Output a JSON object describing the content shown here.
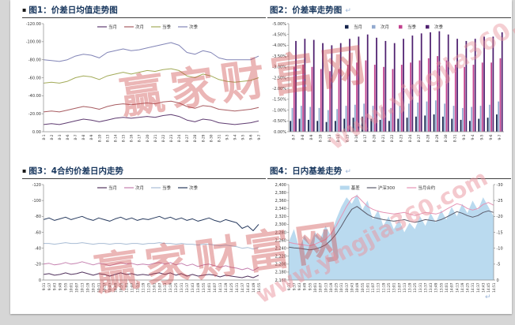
{
  "page": {
    "watermark": {
      "line1": "赢家财富网",
      "line2": "www.yingjia360.com",
      "color": "#ce4848"
    },
    "end_pilcrow": "↵"
  },
  "panels": [
    {
      "bullet": "▪",
      "title": "图1：价差日均值走势图",
      "pilcrow": ""
    },
    {
      "bullet": "",
      "title": "图2：价差率走势图",
      "pilcrow": "↵"
    },
    {
      "bullet": "▪",
      "title": "图3：4合约价差日内走势",
      "pilcrow": ""
    },
    {
      "bullet": "",
      "title": "图4：日内基差走势",
      "pilcrow": "↵"
    }
  ],
  "chart_data": [
    {
      "type": "line",
      "title": "价差日均值走势图",
      "legend_position": "top",
      "grid": false,
      "y_left": {
        "bottom": 0,
        "top": -120,
        "tick_count": 7,
        "format": "fixed2"
      },
      "x": [
        "8-1",
        "8-2",
        "8-3",
        "8-6",
        "8-7",
        "8-8",
        "8-9",
        "8-10",
        "8-13",
        "8-14",
        "8-15",
        "8-16",
        "8-17",
        "8-20",
        "8-21",
        "8-22",
        "8-23",
        "8-24",
        "8-27",
        "8-28",
        "8-29",
        "8-30",
        "8-31",
        "9-3",
        "9-4",
        "9-5",
        "9-6",
        "9-7"
      ],
      "series": [
        {
          "name": "当月",
          "color": "#5f3c71",
          "values": [
            -8,
            -9,
            -8,
            -10,
            -12,
            -14,
            -13,
            -11,
            -13,
            -15,
            -16,
            -15,
            -16,
            -17,
            -16,
            -18,
            -19,
            -17,
            -13,
            -11,
            -14,
            -13,
            -10,
            -9,
            -8,
            -9,
            -10,
            -12
          ]
        },
        {
          "name": "次月",
          "color": "#a85d62",
          "values": [
            -22,
            -23,
            -22,
            -24,
            -26,
            -28,
            -27,
            -25,
            -28,
            -30,
            -31,
            -30,
            -31,
            -32,
            -31,
            -33,
            -34,
            -32,
            -28,
            -26,
            -29,
            -28,
            -25,
            -24,
            -23,
            -24,
            -25,
            -27
          ]
        },
        {
          "name": "当季",
          "color": "#a3ab59",
          "values": [
            -54,
            -55,
            -54,
            -56,
            -60,
            -62,
            -61,
            -58,
            -62,
            -64,
            -66,
            -64,
            -66,
            -68,
            -67,
            -69,
            -70,
            -68,
            -62,
            -60,
            -64,
            -62,
            -58,
            -56,
            -55,
            -56,
            -57,
            -60
          ]
        },
        {
          "name": "次季",
          "color": "#8184b6",
          "values": [
            -80,
            -79,
            -78,
            -80,
            -84,
            -86,
            -85,
            -82,
            -88,
            -90,
            -92,
            -90,
            -91,
            -93,
            -95,
            -97,
            -99,
            -96,
            -88,
            -86,
            -90,
            -88,
            -82,
            -80,
            -80,
            -80,
            -80,
            -84
          ]
        }
      ]
    },
    {
      "type": "bar",
      "title": "价差率走势图",
      "legend_position": "top",
      "grid": false,
      "y_left": {
        "bottom": 0,
        "top": -5,
        "tick_count": 11,
        "format": "pct2"
      },
      "x": [
        "8-7",
        "8-8",
        "8-9",
        "8-10",
        "8-13",
        "8-14",
        "8-15",
        "8-16",
        "8-17",
        "8-20",
        "8-21",
        "8-22",
        "8-23",
        "8-24",
        "8-27",
        "8-28",
        "8-29",
        "8-30",
        "8-31",
        "9-3",
        "9-4",
        "9-5",
        "9-6",
        "9-7"
      ],
      "series": [
        {
          "name": "当月",
          "color": "#16254c",
          "values": [
            -0.5,
            -0.6,
            -0.55,
            -0.5,
            -0.45,
            -0.5,
            -0.6,
            -0.65,
            -0.7,
            -0.6,
            -0.55,
            -0.5,
            -0.6,
            -0.65,
            -0.7,
            -0.75,
            -0.8,
            -0.7,
            -0.6,
            -0.55,
            -0.5,
            -0.6,
            -0.65,
            -0.8
          ]
        },
        {
          "name": "次月",
          "color": "#92a9cf",
          "values": [
            -1.1,
            -1.2,
            -1.15,
            -1.1,
            -1.0,
            -1.05,
            -1.2,
            -1.25,
            -1.3,
            -1.2,
            -1.15,
            -1.1,
            -1.2,
            -1.3,
            -1.35,
            -1.4,
            -1.45,
            -1.3,
            -1.2,
            -1.1,
            -1.15,
            -1.2,
            -1.25,
            -1.4
          ]
        },
        {
          "name": "当季",
          "color": "#c2428f",
          "values": [
            -3.0,
            -3.1,
            -3.0,
            -2.9,
            -2.8,
            -2.9,
            -3.1,
            -3.2,
            -3.3,
            -3.1,
            -3.0,
            -2.9,
            -3.1,
            -3.2,
            -3.3,
            -3.4,
            -3.5,
            -3.3,
            -3.1,
            -3.0,
            -3.1,
            -3.2,
            -3.2,
            -3.4
          ]
        },
        {
          "name": "次季",
          "color": "#4f2170",
          "values": [
            -4.2,
            -4.3,
            -4.25,
            -4.1,
            -4.0,
            -4.1,
            -4.3,
            -4.4,
            -4.5,
            -4.35,
            -4.2,
            -4.1,
            -4.3,
            -4.45,
            -4.55,
            -4.6,
            -4.65,
            -4.5,
            -4.3,
            -4.2,
            -4.3,
            -4.4,
            -4.4,
            -4.6
          ]
        }
      ]
    },
    {
      "type": "line",
      "title": "4合约价差日内走势",
      "legend_position": "top",
      "grid": false,
      "y_left": {
        "bottom": 0,
        "top": -120,
        "tick_count": 7,
        "format": "int"
      },
      "x": [
        "9:31",
        "9:37",
        "9:43",
        "9:49",
        "9:55",
        "10:01",
        "10:07",
        "10:13",
        "10:19",
        "10:25",
        "10:31",
        "10:37",
        "10:43",
        "10:49",
        "10:55",
        "11:01",
        "11:07",
        "11:13",
        "11:19",
        "11:25",
        "13:01",
        "13:07",
        "13:13",
        "13:19",
        "13:25",
        "13:31",
        "13:37",
        "13:43",
        "13:49",
        "13:55",
        "14:01",
        "14:07",
        "14:13",
        "14:19",
        "14:25",
        "14:31",
        "14:37",
        "14:43",
        "14:49",
        "14:55"
      ],
      "series": [
        {
          "name": "当月",
          "color": "#53355f",
          "values": [
            -7,
            -8,
            -6,
            -7,
            -9,
            -7,
            -8,
            -10,
            -8,
            -6,
            -8,
            -7,
            -5,
            -7,
            -9,
            -7,
            -8,
            -6,
            -7,
            -6,
            -8,
            -9,
            -7,
            -9,
            -6,
            -8,
            -5,
            -7,
            -5,
            -6,
            -7,
            -6,
            -4,
            -6,
            -5,
            -4,
            -3,
            -5,
            -3,
            -6
          ]
        },
        {
          "name": "次月",
          "color": "#c47fae",
          "values": [
            -20,
            -21,
            -19,
            -20,
            -22,
            -20,
            -21,
            -23,
            -21,
            -19,
            -21,
            -20,
            -18,
            -20,
            -22,
            -20,
            -21,
            -19,
            -20,
            -19,
            -21,
            -22,
            -20,
            -22,
            -19,
            -21,
            -18,
            -20,
            -17,
            -19,
            -20,
            -18,
            -16,
            -18,
            -16,
            -15,
            -13,
            -15,
            -12,
            -16
          ]
        },
        {
          "name": "当季",
          "color": "#a8bcd4",
          "values": [
            -46,
            -46,
            -45,
            -46,
            -47,
            -46,
            -46,
            -47,
            -46,
            -45,
            -46,
            -46,
            -45,
            -46,
            -46,
            -45,
            -46,
            -46,
            -45,
            -46,
            -46,
            -47,
            -46,
            -46,
            -45,
            -46,
            -45,
            -45,
            -44,
            -45,
            -45,
            -44,
            -43,
            -44,
            -43,
            -42,
            -40,
            -41,
            -39,
            -41
          ]
        },
        {
          "name": "次季",
          "color": "#273a5e",
          "values": [
            -76,
            -78,
            -75,
            -77,
            -79,
            -76,
            -78,
            -80,
            -77,
            -75,
            -78,
            -76,
            -74,
            -77,
            -79,
            -76,
            -78,
            -75,
            -77,
            -76,
            -78,
            -80,
            -77,
            -79,
            -76,
            -78,
            -75,
            -77,
            -74,
            -76,
            -78,
            -75,
            -73,
            -76,
            -74,
            -72,
            -65,
            -68,
            -62,
            -70
          ]
        }
      ]
    },
    {
      "type": "combo",
      "title": "日内基差走势",
      "legend_position": "top",
      "grid": false,
      "y_left": {
        "bottom": 2160,
        "top": 2400,
        "tick_count": 13,
        "format": "comma"
      },
      "y_right": {
        "bottom": 0,
        "top": -30,
        "tick_count": 7,
        "format": "int"
      },
      "x": [
        "9:31",
        "9:37",
        "9:43",
        "9:49",
        "9:55",
        "10:01",
        "10:07",
        "10:13",
        "10:19",
        "10:25",
        "10:31",
        "10:37",
        "10:43",
        "10:49",
        "10:55",
        "11:01",
        "11:07",
        "11:13",
        "11:19",
        "11:25",
        "13:01",
        "13:07",
        "13:13",
        "13:19",
        "13:25",
        "13:31",
        "13:37",
        "13:43",
        "13:49",
        "13:55",
        "14:01",
        "14:07",
        "14:13",
        "14:19",
        "14:25",
        "14:31",
        "14:37",
        "14:43",
        "14:45",
        "14:51"
      ],
      "series": [
        {
          "name": "基差",
          "kind": "area",
          "axis": "right",
          "color": "#b6d8ee",
          "values": [
            -12,
            -16,
            -10,
            -14,
            -11,
            -15,
            -13,
            -17,
            -14,
            -19,
            -23,
            -26,
            -24,
            -27,
            -22,
            -25,
            -19,
            -22,
            -17,
            -20,
            -16,
            -19,
            -15,
            -18,
            -16,
            -20,
            -17,
            -21,
            -18,
            -22,
            -19,
            -23,
            -20,
            -24,
            -21,
            -25,
            -22,
            -26,
            -23,
            -20
          ]
        },
        {
          "name": "沪深300",
          "kind": "line",
          "axis": "left",
          "color": "#5b5b6b",
          "values": [
            2243,
            2241,
            2240,
            2238,
            2236,
            2238,
            2242,
            2248,
            2260,
            2275,
            2295,
            2318,
            2338,
            2345,
            2335,
            2325,
            2318,
            2315,
            2312,
            2310,
            2308,
            2310,
            2312,
            2308,
            2305,
            2308,
            2312,
            2310,
            2308,
            2312,
            2318,
            2325,
            2332,
            2328,
            2322,
            2318,
            2322,
            2330,
            2334,
            2330
          ]
        },
        {
          "name": "当月合约",
          "kind": "line",
          "axis": "left",
          "color": "#e593b4",
          "values": [
            2255,
            2252,
            2250,
            2248,
            2246,
            2250,
            2256,
            2262,
            2276,
            2295,
            2320,
            2345,
            2365,
            2372,
            2358,
            2345,
            2338,
            2333,
            2330,
            2328,
            2326,
            2328,
            2330,
            2326,
            2322,
            2326,
            2330,
            2328,
            2326,
            2330,
            2338,
            2345,
            2352,
            2348,
            2340,
            2336,
            2340,
            2350,
            2355,
            2348
          ]
        }
      ]
    }
  ]
}
